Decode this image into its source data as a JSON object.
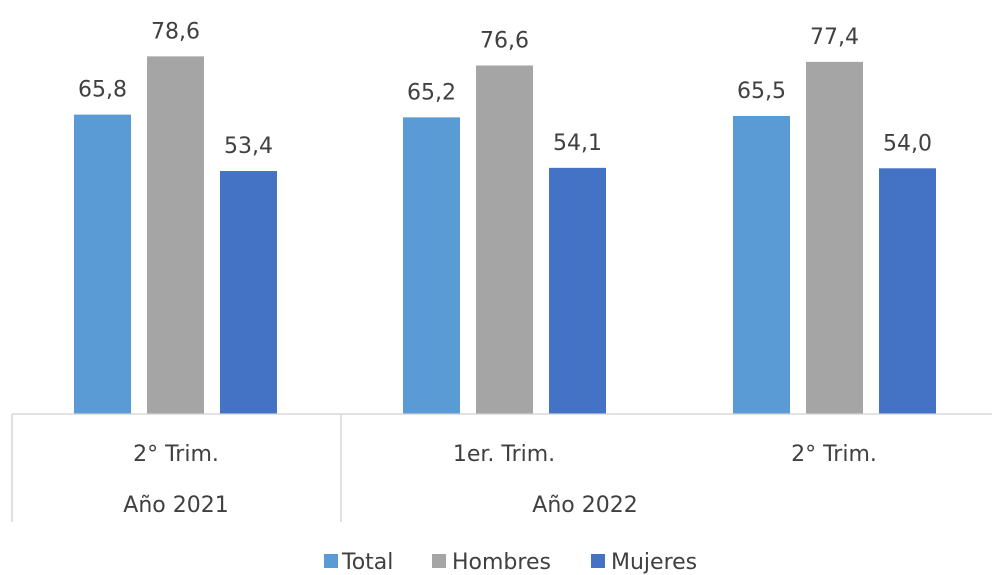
{
  "chart_data": {
    "type": "bar",
    "categories": [
      "2° Trim.",
      "1er. Trim.",
      "2° Trim."
    ],
    "groups": [
      {
        "label": "Año 2021",
        "categories": [
          0
        ]
      },
      {
        "label": "Año 2022",
        "categories": [
          1,
          2
        ]
      }
    ],
    "series": [
      {
        "name": "Total",
        "color": "#5b9bd5",
        "values": [
          65.8,
          65.2,
          65.5
        ],
        "labels": [
          "65,8",
          "65,2",
          "65,5"
        ]
      },
      {
        "name": "Hombres",
        "color": "#a5a5a5",
        "values": [
          78.6,
          76.6,
          77.4
        ],
        "labels": [
          "78,6",
          "76,6",
          "77,4"
        ]
      },
      {
        "name": "Mujeres",
        "color": "#4472c4",
        "values": [
          53.4,
          54.1,
          54.0
        ],
        "labels": [
          "53,4",
          "54,1",
          "54,0"
        ]
      }
    ],
    "ylim": [
      0,
      100
    ],
    "grid": false,
    "legend": "bottom"
  }
}
